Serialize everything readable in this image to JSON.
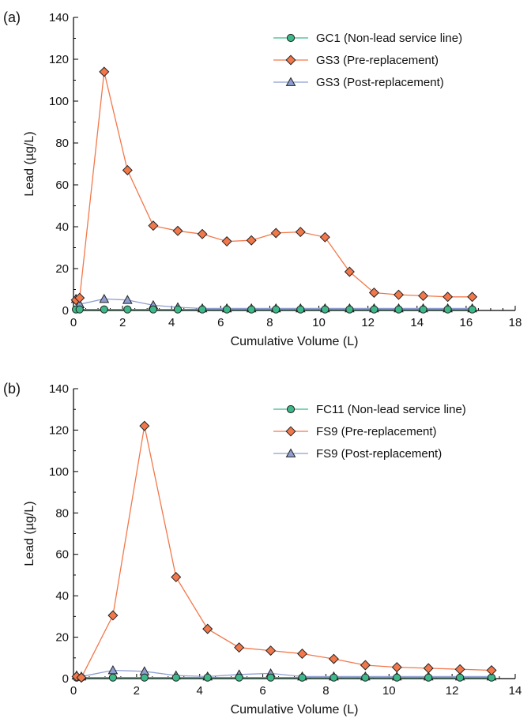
{
  "chart_data": [
    {
      "type": "line",
      "panel_label": "(a)",
      "xlabel": "Cumulative Volume (L)",
      "ylabel": "Lead (µg/L)",
      "xlim": [
        0,
        18
      ],
      "ylim": [
        0,
        140
      ],
      "xticks": [
        0,
        2,
        4,
        6,
        8,
        10,
        12,
        14,
        16,
        18
      ],
      "yticks": [
        0,
        20,
        40,
        60,
        80,
        100,
        120,
        140
      ],
      "legend_position": "top-right",
      "grid": false,
      "series": [
        {
          "name": "GC1 (Non-lead service line)",
          "marker": "circle",
          "color": "#3cb889",
          "x": [
            0.1,
            0.25,
            1.25,
            2.2,
            3.25,
            4.25,
            5.25,
            6.25,
            7.25,
            8.25,
            9.25,
            10.25,
            11.25,
            12.25,
            13.25,
            14.25,
            15.25,
            16.25
          ],
          "y": [
            0.5,
            0.5,
            0.5,
            0.5,
            0.5,
            0.5,
            0.5,
            0.5,
            0.5,
            0.5,
            0.5,
            0.5,
            0.5,
            0.5,
            0.5,
            0.5,
            0.5,
            0.5
          ]
        },
        {
          "name": "GS3 (Pre-replacement)",
          "marker": "diamond",
          "color": "#f2784b",
          "x": [
            0.1,
            0.25,
            1.25,
            2.2,
            3.25,
            4.25,
            5.25,
            6.25,
            7.25,
            8.25,
            9.25,
            10.25,
            11.25,
            12.25,
            13.25,
            14.25,
            15.25,
            16.25
          ],
          "y": [
            5,
            6,
            114,
            67,
            40.5,
            38,
            36.5,
            33,
            33.5,
            37,
            37.5,
            35,
            18.5,
            8.5,
            7.5,
            7,
            6.5,
            6.5
          ]
        },
        {
          "name": "GS3 (Post-replacement)",
          "marker": "triangle",
          "color": "#8f9ed1",
          "x": [
            0.1,
            0.25,
            1.25,
            2.2,
            3.25,
            4.25,
            5.25,
            6.25,
            7.25,
            8.25,
            9.25,
            10.25,
            11.25,
            12.25,
            13.25,
            14.25,
            15.25,
            16.25
          ],
          "y": [
            5.5,
            3,
            5.5,
            5,
            2.5,
            1.5,
            1,
            1,
            1,
            1,
            1,
            1,
            1,
            1,
            1,
            1,
            1,
            1
          ]
        }
      ]
    },
    {
      "type": "line",
      "panel_label": "(b)",
      "xlabel": "Cumulative Volume (L)",
      "ylabel": "Lead (µg/L)",
      "xlim": [
        0,
        14
      ],
      "ylim": [
        0,
        140
      ],
      "xticks": [
        0,
        2,
        4,
        6,
        8,
        10,
        12,
        14
      ],
      "yticks": [
        0,
        20,
        40,
        60,
        80,
        100,
        120,
        140
      ],
      "legend_position": "top-right",
      "grid": false,
      "series": [
        {
          "name": "FC11 (Non-lead service line)",
          "marker": "circle",
          "color": "#3cb889",
          "x": [
            0.1,
            0.25,
            1.25,
            2.25,
            3.25,
            4.25,
            5.25,
            6.25,
            7.25,
            8.25,
            9.25,
            10.25,
            11.25,
            12.25,
            13.25
          ],
          "y": [
            0.5,
            0.5,
            0.5,
            0.5,
            0.5,
            0.5,
            0.5,
            0.5,
            0.5,
            0.5,
            0.5,
            0.5,
            0.5,
            0.5,
            0.5
          ]
        },
        {
          "name": "FS9 (Pre-replacement)",
          "marker": "diamond",
          "color": "#f2784b",
          "x": [
            0.1,
            0.25,
            1.25,
            2.25,
            3.25,
            4.25,
            5.25,
            6.25,
            7.25,
            8.25,
            9.25,
            10.25,
            11.25,
            12.25,
            13.25
          ],
          "y": [
            1,
            0.5,
            30.5,
            122,
            49,
            24,
            15,
            13.5,
            12,
            9.5,
            6.5,
            5.5,
            5,
            4.5,
            4
          ]
        },
        {
          "name": "FS9 (Post-replacement)",
          "marker": "triangle",
          "color": "#8f9ed1",
          "x": [
            0.1,
            0.25,
            1.25,
            2.25,
            3.25,
            4.25,
            5.25,
            6.25,
            7.25,
            8.25,
            9.25,
            10.25,
            11.25,
            12.25,
            13.25
          ],
          "y": [
            1.5,
            1,
            4,
            3.5,
            1.5,
            1,
            2,
            2.5,
            1,
            1,
            1,
            1,
            1,
            1,
            1
          ]
        }
      ]
    }
  ]
}
